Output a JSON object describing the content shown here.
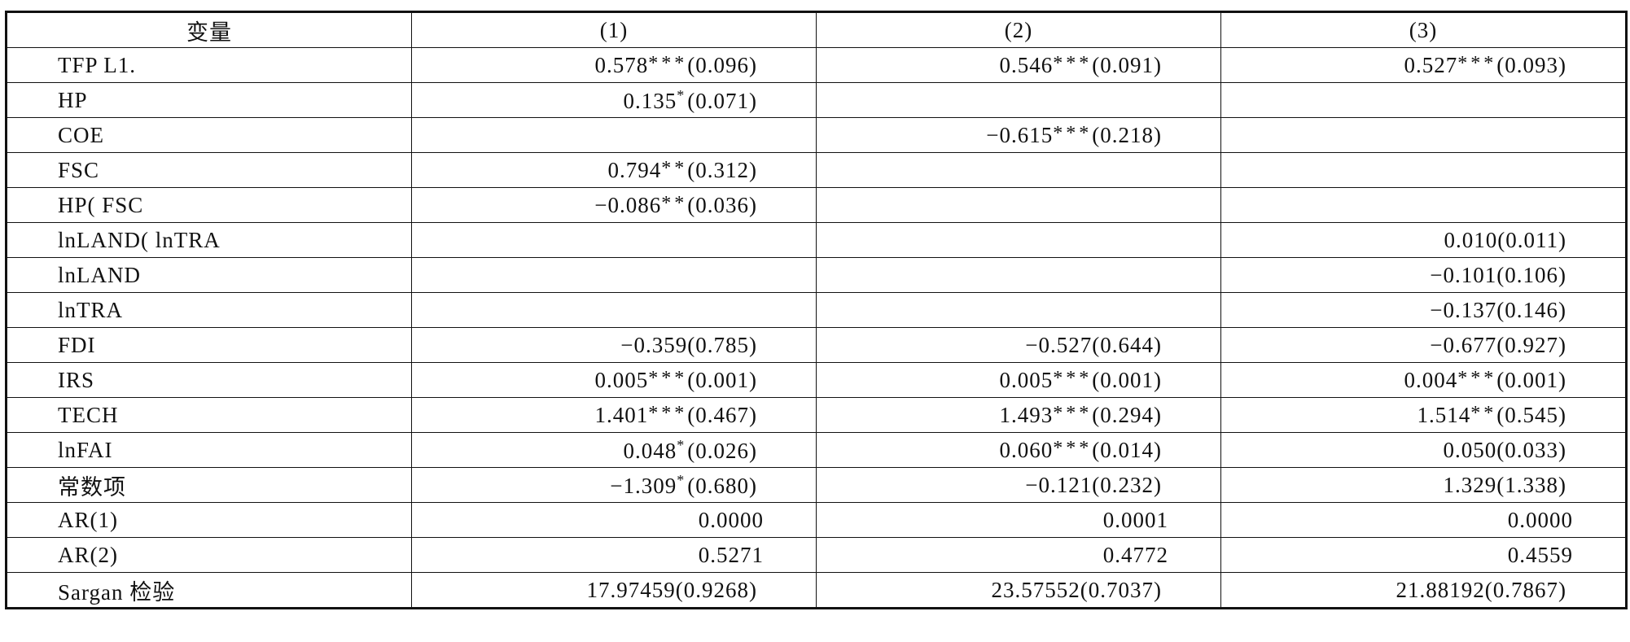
{
  "table": {
    "header": [
      "变量",
      "(1)",
      "(2)",
      "(3)"
    ],
    "rows": [
      [
        "TFP L1.",
        "0.578***(0.096)",
        "0.546***(0.091)",
        "0.527***(0.093)"
      ],
      [
        "HP",
        "0.135*(0.071)",
        null,
        null
      ],
      [
        "COE",
        null,
        "-0.615***(0.218)",
        null
      ],
      [
        "FSC",
        "0.794**(0.312)",
        null,
        null
      ],
      [
        "HP( FSC",
        "-0.086**(0.036)",
        null,
        null
      ],
      [
        "lnLAND( lnTRA",
        null,
        null,
        "0.010(0.011)"
      ],
      [
        "lnLAND",
        null,
        null,
        "-0.101(0.106)"
      ],
      [
        "lnTRA",
        null,
        null,
        "-0.137(0.146)"
      ],
      [
        "FDI",
        "-0.359(0.785)",
        "-0.527(0.644)",
        "-0.677(0.927)"
      ],
      [
        "IRS",
        "0.005***(0.001)",
        "0.005***(0.001)",
        "0.004***(0.001)"
      ],
      [
        "TECH",
        "1.401***(0.467)",
        "1.493***(0.294)",
        "1.514**(0.545)"
      ],
      [
        "lnFAI",
        "0.048*(0.026)",
        "0.060***(0.014)",
        "0.050(0.033)"
      ],
      [
        "常数项",
        "-1.309*(0.680)",
        "-0.121(0.232)",
        "1.329(1.338)"
      ],
      [
        "AR(1)",
        "0.0000",
        "0.0001",
        "0.0000"
      ],
      [
        "AR(2)",
        "0.5271",
        "0.4772",
        "0.4559"
      ],
      [
        "Sargan 检验",
        "17.97459(0.9268)",
        "23.57552(0.7037)",
        "21.88192(0.7867)"
      ]
    ]
  }
}
